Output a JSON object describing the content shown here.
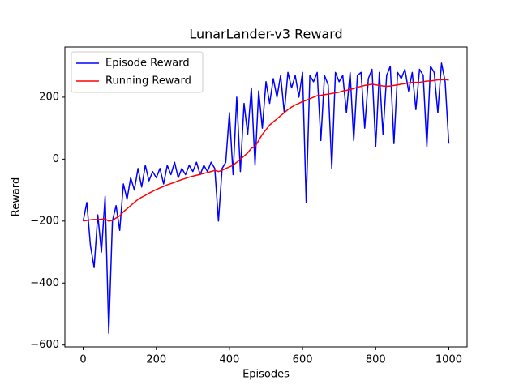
{
  "chart_data": {
    "type": "line",
    "title": "LunarLander-v3 Reward",
    "x_label": "Episodes",
    "y_label": "Reward",
    "x": [
      0,
      10,
      20,
      30,
      40,
      50,
      60,
      70,
      80,
      90,
      100,
      110,
      120,
      130,
      140,
      150,
      160,
      170,
      180,
      190,
      200,
      210,
      220,
      230,
      240,
      250,
      260,
      270,
      280,
      290,
      300,
      310,
      320,
      330,
      340,
      350,
      360,
      370,
      380,
      390,
      400,
      410,
      420,
      430,
      440,
      450,
      460,
      470,
      480,
      490,
      500,
      510,
      520,
      530,
      540,
      550,
      560,
      570,
      580,
      590,
      600,
      610,
      620,
      630,
      640,
      650,
      660,
      670,
      680,
      690,
      700,
      710,
      720,
      730,
      740,
      750,
      760,
      770,
      780,
      790,
      800,
      810,
      820,
      830,
      840,
      850,
      860,
      870,
      880,
      890,
      900,
      910,
      920,
      930,
      940,
      950,
      960,
      970,
      980,
      990,
      1000
    ],
    "series": [
      {
        "name": "Episode Reward",
        "color": "#0000ff",
        "values": [
          -200,
          -140,
          -280,
          -350,
          -180,
          -300,
          -120,
          -562,
          -200,
          -150,
          -230,
          -80,
          -130,
          -60,
          -100,
          -30,
          -90,
          -20,
          -70,
          -40,
          -60,
          -30,
          -80,
          -20,
          -50,
          -10,
          -60,
          -30,
          -50,
          -20,
          -40,
          -10,
          -50,
          -20,
          -40,
          -10,
          -30,
          -200,
          -30,
          -10,
          150,
          -50,
          200,
          -40,
          180,
          80,
          230,
          -20,
          220,
          100,
          250,
          180,
          260,
          200,
          270,
          150,
          280,
          230,
          270,
          200,
          280,
          -140,
          270,
          250,
          280,
          60,
          270,
          240,
          -30,
          280,
          250,
          270,
          150,
          280,
          60,
          270,
          280,
          100,
          260,
          290,
          40,
          280,
          80,
          270,
          300,
          50,
          280,
          260,
          290,
          220,
          280,
          160,
          290,
          270,
          40,
          300,
          280,
          150,
          310,
          250,
          50
        ]
      },
      {
        "name": "Running Reward",
        "color": "#ff0000",
        "values": [
          -200,
          -198,
          -196,
          -195,
          -195,
          -194,
          -193,
          -200,
          -198,
          -190,
          -183,
          -170,
          -160,
          -150,
          -140,
          -130,
          -123,
          -117,
          -110,
          -104,
          -98,
          -93,
          -88,
          -83,
          -79,
          -75,
          -70,
          -66,
          -62,
          -58,
          -55,
          -52,
          -49,
          -46,
          -43,
          -40,
          -36,
          -40,
          -36,
          -30,
          -25,
          -20,
          -10,
          0,
          10,
          20,
          35,
          40,
          60,
          80,
          95,
          110,
          120,
          130,
          140,
          150,
          160,
          168,
          175,
          180,
          186,
          190,
          195,
          200,
          205,
          206,
          208,
          210,
          212,
          214,
          216,
          220,
          222,
          225,
          228,
          232,
          235,
          238,
          240,
          242,
          240,
          238,
          236,
          235,
          236,
          238,
          240,
          242,
          244,
          246,
          248,
          248,
          248,
          250,
          252,
          252,
          254,
          256,
          256,
          257,
          255
        ]
      }
    ],
    "xlim": [
      -50,
      1050
    ],
    "ylim": [
      -606,
      362
    ],
    "xticks": [
      0,
      200,
      400,
      600,
      800,
      1000
    ],
    "yticks": [
      {
        "value": -600,
        "label": "−600"
      },
      {
        "value": -400,
        "label": "−400"
      },
      {
        "value": -200,
        "label": "−200"
      },
      0,
      200
    ],
    "legend": "upper left",
    "grid": false
  }
}
